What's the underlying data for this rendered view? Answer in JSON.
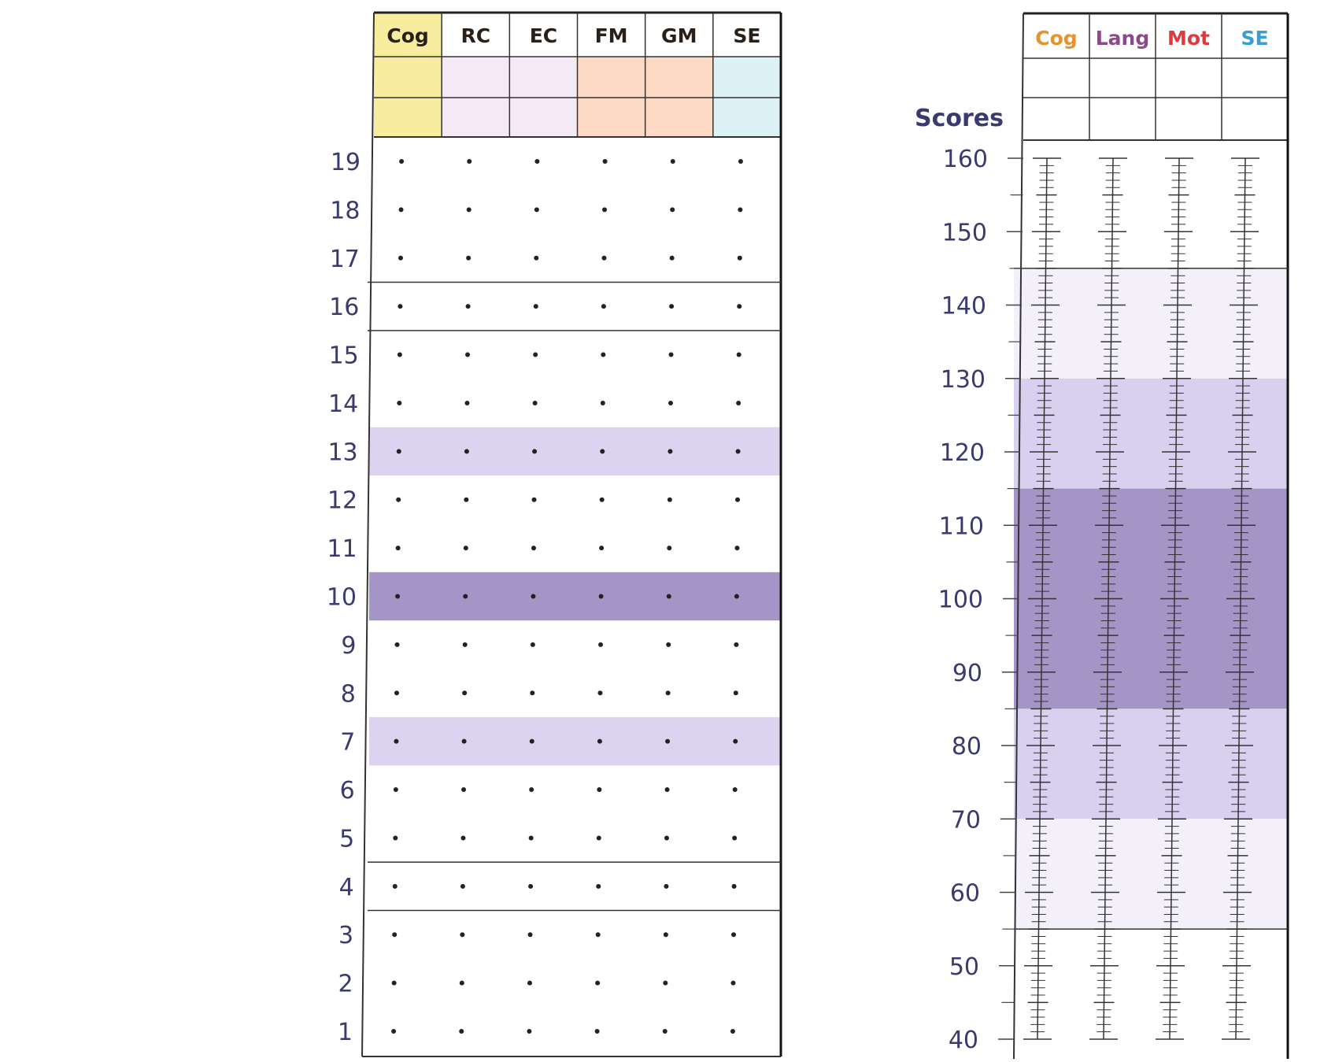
{
  "chart_data": [
    {
      "type": "table",
      "columns": [
        {
          "label": "Cog",
          "color": "#e3a23a",
          "fill": "#f8ed9e"
        },
        {
          "label": "RC",
          "color": "#8a4a8a",
          "fill": "#f6e9f6"
        },
        {
          "label": "EC",
          "color": "#8a4a8a",
          "fill": "#f6e9f6"
        },
        {
          "label": "FM",
          "color": "#e04a4a",
          "fill": "#fbd9c4"
        },
        {
          "label": "GM",
          "color": "#e04a4a",
          "fill": "#fbd9c4"
        },
        {
          "label": "SE",
          "color": "#4a9ec8",
          "fill": "#dcf2f6"
        }
      ],
      "header_label_color": "#2b1f1a",
      "y_ticks": [
        19,
        18,
        17,
        16,
        15,
        14,
        13,
        12,
        11,
        10,
        9,
        8,
        7,
        6,
        5,
        4,
        3,
        2,
        1
      ],
      "ylim": [
        1,
        19
      ],
      "bands": [
        {
          "value": 13,
          "color": "#dcd3f0"
        },
        {
          "value": 10,
          "color": "#a595c6"
        },
        {
          "value": 7,
          "color": "#dcd3f0"
        }
      ],
      "rules_between": [
        [
          16,
          17
        ],
        [
          15,
          16
        ],
        [
          4,
          5
        ],
        [
          3,
          4
        ]
      ]
    },
    {
      "type": "table",
      "title": "Scores",
      "columns": [
        {
          "label": "Cog",
          "color": "#e8922e"
        },
        {
          "label": "Lang",
          "color": "#8a4a8a"
        },
        {
          "label": "Mot",
          "color": "#e0383c"
        },
        {
          "label": "SE",
          "color": "#3a9ed2"
        }
      ],
      "y_ticks": [
        160,
        150,
        140,
        130,
        120,
        110,
        100,
        90,
        80,
        70,
        60,
        50,
        40
      ],
      "ylim": [
        40,
        160
      ],
      "minor_step": 1,
      "bands": [
        {
          "from": 145,
          "to": 130,
          "color": "#f3f0fa"
        },
        {
          "from": 130,
          "to": 115,
          "color": "#d8d0ee"
        },
        {
          "from": 115,
          "to": 85,
          "color": "#a595c6"
        },
        {
          "from": 85,
          "to": 70,
          "color": "#d8d0ee"
        },
        {
          "from": 70,
          "to": 55,
          "color": "#f3f0fa"
        }
      ],
      "rules_at": [
        145,
        55
      ]
    }
  ]
}
